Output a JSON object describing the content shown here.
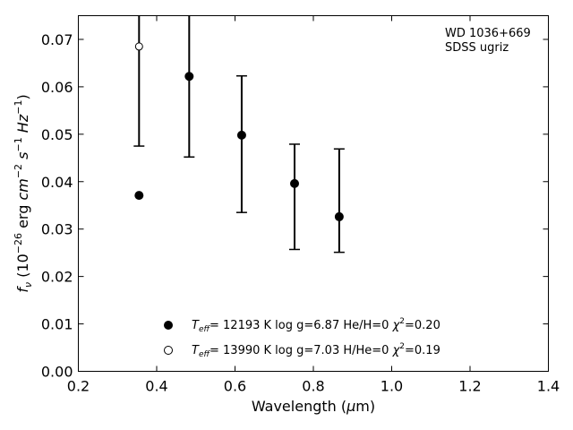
{
  "chart_data": {
    "type": "scatter",
    "xlabel": "Wavelength (μm)",
    "ylabel": "f_ν (10^-26 erg cm^-2 s^-1 Hz^-1)",
    "xlim": [
      0.2,
      1.4
    ],
    "ylim": [
      0.0,
      0.075
    ],
    "x_ticks": [
      "0.2",
      "0.4",
      "0.6",
      "0.8",
      "1.0",
      "1.2",
      "1.4"
    ],
    "y_ticks": [
      "0.00",
      "0.01",
      "0.02",
      "0.03",
      "0.04",
      "0.05",
      "0.06",
      "0.07"
    ],
    "annotation": [
      "WD 1036+669",
      "SDSS ugriz"
    ],
    "grid": false,
    "legend_position": "bottom-center",
    "observed": {
      "x": [
        0.355,
        0.483,
        0.617,
        0.752,
        0.866
      ],
      "y": [
        0.0615,
        0.0622,
        0.0498,
        0.0395,
        0.0327
      ],
      "yerr_low": [
        0.0475,
        0.0452,
        0.0335,
        0.0257,
        0.0251
      ],
      "yerr_high": [
        0.0755,
        0.0755,
        0.0623,
        0.0479,
        0.0469
      ]
    },
    "series": [
      {
        "name": "Teff= 12193 K  log g=6.87  He/H=0  χ2=0.20",
        "marker": "filled-circle",
        "x": [
          0.355,
          0.483,
          0.617,
          0.752,
          0.866
        ],
        "y": [
          0.0371,
          0.0622,
          0.0498,
          0.0396,
          0.0326
        ]
      },
      {
        "name": "Teff= 13990 K  log g=7.03  H/He=0  χ2=0.19",
        "marker": "open-circle",
        "x": [
          0.355
        ],
        "y": [
          0.0685
        ]
      }
    ],
    "legend": [
      {
        "teff_label": "T",
        "teff_sub": "eff",
        "text": "= 12193 K  log g=6.87  He/H=0  ",
        "chi": "χ",
        "chi_sup": "2",
        "chi_val": "=0.20"
      },
      {
        "teff_label": "T",
        "teff_sub": "eff",
        "text": "= 13990 K  log g=7.03  H/He=0  ",
        "chi": "χ",
        "chi_sup": "2",
        "chi_val": "=0.19"
      }
    ],
    "colors": {
      "marker": "#000000",
      "axis": "#000000",
      "background": "#ffffff"
    }
  }
}
